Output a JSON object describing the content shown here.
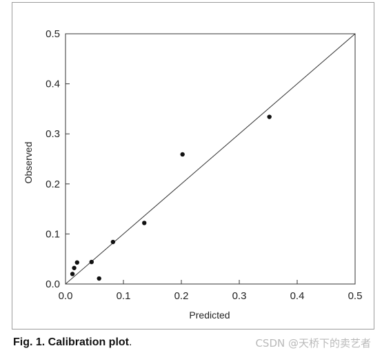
{
  "chart_data": {
    "type": "scatter",
    "title": "",
    "xlabel": "Predicted",
    "ylabel": "Observed",
    "xlim": [
      0,
      0.5
    ],
    "ylim": [
      0,
      0.5
    ],
    "x_ticks": [
      "0.0",
      "0.1",
      "0.2",
      "0.3",
      "0.4",
      "0.5"
    ],
    "y_ticks": [
      "0.0",
      "0.1",
      "0.2",
      "0.3",
      "0.4",
      "0.5"
    ],
    "grid": false,
    "reference_line": {
      "from": [
        0,
        0
      ],
      "to": [
        0.5,
        0.5
      ]
    },
    "points": [
      {
        "x": 0.012,
        "y": 0.02
      },
      {
        "x": 0.015,
        "y": 0.032
      },
      {
        "x": 0.02,
        "y": 0.043
      },
      {
        "x": 0.045,
        "y": 0.044
      },
      {
        "x": 0.058,
        "y": 0.011
      },
      {
        "x": 0.082,
        "y": 0.084
      },
      {
        "x": 0.136,
        "y": 0.122
      },
      {
        "x": 0.202,
        "y": 0.259
      },
      {
        "x": 0.352,
        "y": 0.334
      }
    ],
    "colors": {
      "marker": "#111111",
      "axes": "#333333"
    }
  },
  "caption": {
    "lead": "Fig. 1. Calibration plot",
    "tail": "."
  },
  "watermark": "CSDN @天桥下的卖艺者"
}
